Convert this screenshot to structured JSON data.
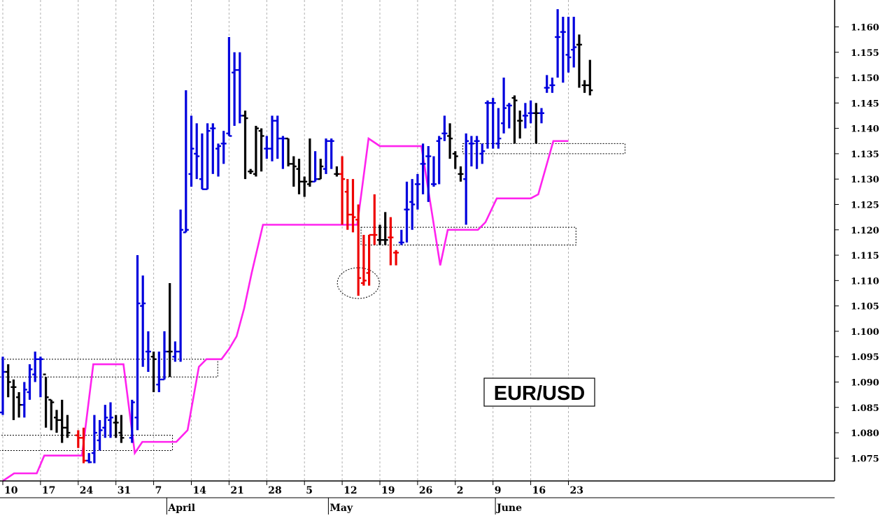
{
  "chart_data": {
    "type": "ohlc-bar",
    "title": "EUR/USD",
    "colors": {
      "up": "#0000dd",
      "down": "#000000",
      "highlight": "#ee0000",
      "line": "#ff22ee",
      "grid": "#b0b0b0"
    },
    "ylim": [
      1.0705,
      1.1653
    ],
    "y_ticks": [
      "1.075",
      "1.080",
      "1.085",
      "1.090",
      "1.095",
      "1.100",
      "1.105",
      "1.110",
      "1.115",
      "1.120",
      "1.125",
      "1.130",
      "1.135",
      "1.140",
      "1.145",
      "1.150",
      "1.155",
      "1.160"
    ],
    "x_ticks": [
      {
        "day": 0,
        "label": "10"
      },
      {
        "day": 7,
        "label": "17"
      },
      {
        "day": 14,
        "label": "24"
      },
      {
        "day": 21,
        "label": "31"
      },
      {
        "day": 28,
        "label": "7"
      },
      {
        "day": 35,
        "label": "14"
      },
      {
        "day": 42,
        "label": "21"
      },
      {
        "day": 49,
        "label": "28"
      },
      {
        "day": 56,
        "label": "5"
      },
      {
        "day": 63,
        "label": "12"
      },
      {
        "day": 70,
        "label": "19"
      },
      {
        "day": 77,
        "label": "26"
      },
      {
        "day": 84,
        "label": "2"
      },
      {
        "day": 91,
        "label": "9"
      },
      {
        "day": 98,
        "label": "16"
      },
      {
        "day": 105,
        "label": "23"
      }
    ],
    "month_labels": [
      {
        "day": 22,
        "label": "April"
      },
      {
        "day": 52,
        "label": "May"
      },
      {
        "day": 83,
        "label": "June"
      }
    ],
    "x_range_days": [
      0,
      109
    ],
    "bars": [
      {
        "d": 0,
        "o": 1.084,
        "h": 1.095,
        "l": 1.0835,
        "c": 1.092,
        "k": "up"
      },
      {
        "d": 1,
        "o": 1.092,
        "h": 1.0935,
        "l": 1.087,
        "c": 1.09,
        "k": "down"
      },
      {
        "d": 2,
        "o": 1.089,
        "h": 1.0905,
        "l": 1.0825,
        "c": 1.089,
        "k": "down"
      },
      {
        "d": 3,
        "o": 1.087,
        "h": 1.088,
        "l": 1.083,
        "c": 1.0855,
        "k": "down"
      },
      {
        "d": 4,
        "o": 1.0855,
        "h": 1.09,
        "l": 1.083,
        "c": 1.0885,
        "k": "up"
      },
      {
        "d": 5,
        "o": 1.088,
        "h": 1.0935,
        "l": 1.0865,
        "c": 1.0925,
        "k": "up"
      },
      {
        "d": 6,
        "o": 1.0915,
        "h": 1.096,
        "l": 1.09,
        "c": 1.0945,
        "k": "up"
      },
      {
        "d": 7,
        "o": 1.0945,
        "h": 1.095,
        "l": 1.087,
        "c": 1.0945,
        "k": "up"
      },
      {
        "d": 8,
        "o": 1.0915,
        "h": 1.091,
        "l": 1.081,
        "c": 1.087,
        "k": "down"
      },
      {
        "d": 9,
        "o": 1.0865,
        "h": 1.0865,
        "l": 1.0805,
        "c": 1.086,
        "k": "down"
      },
      {
        "d": 10,
        "o": 1.083,
        "h": 1.0845,
        "l": 1.08,
        "c": 1.0825,
        "k": "down"
      },
      {
        "d": 11,
        "o": 1.0825,
        "h": 1.0865,
        "l": 1.078,
        "c": 1.081,
        "k": "down"
      },
      {
        "d": 12,
        "o": 1.081,
        "h": 1.0835,
        "l": 1.079,
        "c": 1.08,
        "k": "down"
      },
      {
        "d": 14,
        "o": 1.0795,
        "h": 1.0805,
        "l": 1.077,
        "c": 1.079,
        "k": "hi"
      },
      {
        "d": 15,
        "o": 1.079,
        "h": 1.081,
        "l": 1.074,
        "c": 1.0745,
        "k": "hi"
      },
      {
        "d": 16,
        "o": 1.0745,
        "h": 1.076,
        "l": 1.074,
        "c": 1.0742,
        "k": "up"
      },
      {
        "d": 17,
        "o": 1.076,
        "h": 1.0835,
        "l": 1.074,
        "c": 1.08,
        "k": "up"
      },
      {
        "d": 18,
        "o": 1.0785,
        "h": 1.0825,
        "l": 1.0765,
        "c": 1.0805,
        "k": "up"
      },
      {
        "d": 19,
        "o": 1.081,
        "h": 1.0855,
        "l": 1.079,
        "c": 1.083,
        "k": "up"
      },
      {
        "d": 20,
        "o": 1.0825,
        "h": 1.086,
        "l": 1.079,
        "c": 1.083,
        "k": "up"
      },
      {
        "d": 21,
        "o": 1.082,
        "h": 1.0835,
        "l": 1.079,
        "c": 1.082,
        "k": "down"
      },
      {
        "d": 22,
        "o": 1.08,
        "h": 1.0835,
        "l": 1.078,
        "c": 1.079,
        "k": "down"
      },
      {
        "d": 24,
        "o": 1.079,
        "h": 1.0865,
        "l": 1.078,
        "c": 1.086,
        "k": "up"
      },
      {
        "d": 25,
        "o": 1.083,
        "h": 1.115,
        "l": 1.0805,
        "c": 1.1055,
        "k": "up"
      },
      {
        "d": 26,
        "o": 1.105,
        "h": 1.111,
        "l": 1.093,
        "c": 1.1055,
        "k": "up"
      },
      {
        "d": 27,
        "o": 1.096,
        "h": 1.1,
        "l": 1.092,
        "c": 1.096,
        "k": "up"
      },
      {
        "d": 28,
        "o": 1.095,
        "h": 1.096,
        "l": 1.088,
        "c": 1.0945,
        "k": "down"
      },
      {
        "d": 29,
        "o": 1.0895,
        "h": 1.096,
        "l": 1.088,
        "c": 1.0905,
        "k": "up"
      },
      {
        "d": 30,
        "o": 1.0905,
        "h": 1.1,
        "l": 1.0905,
        "c": 1.096,
        "k": "up"
      },
      {
        "d": 31,
        "o": 1.096,
        "h": 1.1095,
        "l": 1.091,
        "c": 1.096,
        "k": "down"
      },
      {
        "d": 32,
        "o": 1.095,
        "h": 1.098,
        "l": 1.094,
        "c": 1.096,
        "k": "up"
      },
      {
        "d": 33,
        "o": 1.096,
        "h": 1.124,
        "l": 1.094,
        "c": 1.12,
        "k": "up"
      },
      {
        "d": 34,
        "o": 1.1195,
        "h": 1.1475,
        "l": 1.1195,
        "c": 1.12,
        "k": "up"
      },
      {
        "d": 35,
        "o": 1.131,
        "h": 1.1425,
        "l": 1.1285,
        "c": 1.136,
        "k": "up"
      },
      {
        "d": 36,
        "o": 1.135,
        "h": 1.141,
        "l": 1.13,
        "c": 1.1345,
        "k": "up"
      },
      {
        "d": 37,
        "o": 1.13,
        "h": 1.139,
        "l": 1.128,
        "c": 1.128,
        "k": "up"
      },
      {
        "d": 38,
        "o": 1.128,
        "h": 1.141,
        "l": 1.128,
        "c": 1.1395,
        "k": "up"
      },
      {
        "d": 39,
        "o": 1.14,
        "h": 1.141,
        "l": 1.131,
        "c": 1.14,
        "k": "up"
      },
      {
        "d": 40,
        "o": 1.136,
        "h": 1.137,
        "l": 1.1305,
        "c": 1.1365,
        "k": "up"
      },
      {
        "d": 41,
        "o": 1.137,
        "h": 1.1395,
        "l": 1.133,
        "c": 1.137,
        "k": "up"
      },
      {
        "d": 42,
        "o": 1.139,
        "h": 1.158,
        "l": 1.1385,
        "c": 1.1385,
        "k": "up"
      },
      {
        "d": 43,
        "o": 1.151,
        "h": 1.155,
        "l": 1.1405,
        "c": 1.1515,
        "k": "up"
      },
      {
        "d": 44,
        "o": 1.1515,
        "h": 1.155,
        "l": 1.141,
        "c": 1.1425,
        "k": "up"
      },
      {
        "d": 45,
        "o": 1.1425,
        "h": 1.1435,
        "l": 1.13,
        "c": 1.142,
        "k": "down"
      },
      {
        "d": 46,
        "o": 1.1315,
        "h": 1.132,
        "l": 1.131,
        "c": 1.1315,
        "k": "down"
      },
      {
        "d": 47,
        "o": 1.131,
        "h": 1.1405,
        "l": 1.1305,
        "c": 1.14,
        "k": "down"
      },
      {
        "d": 48,
        "o": 1.1395,
        "h": 1.14,
        "l": 1.1315,
        "c": 1.1385,
        "k": "down"
      },
      {
        "d": 49,
        "o": 1.136,
        "h": 1.1385,
        "l": 1.134,
        "c": 1.136,
        "k": "up"
      },
      {
        "d": 50,
        "o": 1.136,
        "h": 1.1425,
        "l": 1.1335,
        "c": 1.1415,
        "k": "up"
      },
      {
        "d": 51,
        "o": 1.1415,
        "h": 1.1425,
        "l": 1.134,
        "c": 1.138,
        "k": "up"
      },
      {
        "d": 52,
        "o": 1.138,
        "h": 1.1385,
        "l": 1.132,
        "c": 1.138,
        "k": "up"
      },
      {
        "d": 53,
        "o": 1.138,
        "h": 1.138,
        "l": 1.1325,
        "c": 1.133,
        "k": "down"
      },
      {
        "d": 54,
        "o": 1.133,
        "h": 1.1345,
        "l": 1.1285,
        "c": 1.1325,
        "k": "down"
      },
      {
        "d": 55,
        "o": 1.132,
        "h": 1.134,
        "l": 1.127,
        "c": 1.1295,
        "k": "down"
      },
      {
        "d": 56,
        "o": 1.1295,
        "h": 1.1305,
        "l": 1.1265,
        "c": 1.1295,
        "k": "down"
      },
      {
        "d": 57,
        "o": 1.129,
        "h": 1.138,
        "l": 1.1285,
        "c": 1.1295,
        "k": "down"
      },
      {
        "d": 58,
        "o": 1.1295,
        "h": 1.1355,
        "l": 1.1295,
        "c": 1.13,
        "k": "up"
      },
      {
        "d": 59,
        "o": 1.13,
        "h": 1.134,
        "l": 1.13,
        "c": 1.1325,
        "k": "down"
      },
      {
        "d": 60,
        "o": 1.132,
        "h": 1.138,
        "l": 1.131,
        "c": 1.1375,
        "k": "up"
      },
      {
        "d": 61,
        "o": 1.1375,
        "h": 1.138,
        "l": 1.132,
        "c": 1.1375,
        "k": "up"
      },
      {
        "d": 62,
        "o": 1.131,
        "h": 1.1325,
        "l": 1.1305,
        "c": 1.131,
        "k": "down"
      },
      {
        "d": 63,
        "o": 1.131,
        "h": 1.1345,
        "l": 1.121,
        "c": 1.13,
        "k": "hi"
      },
      {
        "d": 64,
        "o": 1.1275,
        "h": 1.13,
        "l": 1.12,
        "c": 1.123,
        "k": "hi"
      },
      {
        "d": 65,
        "o": 1.123,
        "h": 1.13,
        "l": 1.1195,
        "c": 1.1225,
        "k": "hi"
      },
      {
        "d": 66,
        "o": 1.122,
        "h": 1.125,
        "l": 1.107,
        "c": 1.1105,
        "k": "hi"
      },
      {
        "d": 67,
        "o": 1.1095,
        "h": 1.119,
        "l": 1.109,
        "c": 1.11,
        "k": "hi"
      },
      {
        "d": 68,
        "o": 1.1115,
        "h": 1.119,
        "l": 1.109,
        "c": 1.119,
        "k": "hi"
      },
      {
        "d": 69,
        "o": 1.119,
        "h": 1.127,
        "l": 1.117,
        "c": 1.119,
        "k": "hi"
      },
      {
        "d": 70,
        "o": 1.118,
        "h": 1.121,
        "l": 1.117,
        "c": 1.118,
        "k": "down"
      },
      {
        "d": 71,
        "o": 1.118,
        "h": 1.1235,
        "l": 1.117,
        "c": 1.118,
        "k": "down"
      },
      {
        "d": 72,
        "o": 1.1185,
        "h": 1.1225,
        "l": 1.113,
        "c": 1.1185,
        "k": "hi"
      },
      {
        "d": 73,
        "o": 1.1155,
        "h": 1.116,
        "l": 1.113,
        "c": 1.1155,
        "k": "hi"
      },
      {
        "d": 74,
        "o": 1.1175,
        "h": 1.12,
        "l": 1.117,
        "c": 1.1175,
        "k": "up"
      },
      {
        "d": 75,
        "o": 1.124,
        "h": 1.1295,
        "l": 1.1175,
        "c": 1.124,
        "k": "up"
      },
      {
        "d": 76,
        "o": 1.1255,
        "h": 1.13,
        "l": 1.12,
        "c": 1.125,
        "k": "up"
      },
      {
        "d": 77,
        "o": 1.129,
        "h": 1.131,
        "l": 1.124,
        "c": 1.129,
        "k": "up"
      },
      {
        "d": 78,
        "o": 1.133,
        "h": 1.137,
        "l": 1.127,
        "c": 1.133,
        "k": "up"
      },
      {
        "d": 79,
        "o": 1.1345,
        "h": 1.1365,
        "l": 1.1255,
        "c": 1.1345,
        "k": "up"
      },
      {
        "d": 80,
        "o": 1.129,
        "h": 1.1345,
        "l": 1.1285,
        "c": 1.129,
        "k": "up"
      },
      {
        "d": 81,
        "o": 1.1375,
        "h": 1.1385,
        "l": 1.129,
        "c": 1.138,
        "k": "up"
      },
      {
        "d": 82,
        "o": 1.139,
        "h": 1.1425,
        "l": 1.1375,
        "c": 1.139,
        "k": "up"
      },
      {
        "d": 83,
        "o": 1.1385,
        "h": 1.141,
        "l": 1.134,
        "c": 1.138,
        "k": "down"
      },
      {
        "d": 84,
        "o": 1.135,
        "h": 1.1355,
        "l": 1.132,
        "c": 1.1345,
        "k": "down"
      },
      {
        "d": 85,
        "o": 1.131,
        "h": 1.1325,
        "l": 1.1295,
        "c": 1.131,
        "k": "down"
      },
      {
        "d": 86,
        "o": 1.13,
        "h": 1.139,
        "l": 1.121,
        "c": 1.1375,
        "k": "up"
      },
      {
        "d": 87,
        "o": 1.137,
        "h": 1.1385,
        "l": 1.1325,
        "c": 1.137,
        "k": "up"
      },
      {
        "d": 88,
        "o": 1.1375,
        "h": 1.1385,
        "l": 1.132,
        "c": 1.1375,
        "k": "up"
      },
      {
        "d": 89,
        "o": 1.135,
        "h": 1.137,
        "l": 1.133,
        "c": 1.1355,
        "k": "up"
      },
      {
        "d": 90,
        "o": 1.145,
        "h": 1.1455,
        "l": 1.136,
        "c": 1.145,
        "k": "up"
      },
      {
        "d": 91,
        "o": 1.145,
        "h": 1.146,
        "l": 1.136,
        "c": 1.145,
        "k": "up"
      },
      {
        "d": 92,
        "o": 1.137,
        "h": 1.144,
        "l": 1.136,
        "c": 1.138,
        "k": "up"
      },
      {
        "d": 93,
        "o": 1.141,
        "h": 1.15,
        "l": 1.139,
        "c": 1.144,
        "k": "up"
      },
      {
        "d": 94,
        "o": 1.1445,
        "h": 1.145,
        "l": 1.14,
        "c": 1.1445,
        "k": "up"
      },
      {
        "d": 95,
        "o": 1.146,
        "h": 1.1465,
        "l": 1.137,
        "c": 1.1455,
        "k": "down"
      },
      {
        "d": 96,
        "o": 1.1415,
        "h": 1.1435,
        "l": 1.138,
        "c": 1.1415,
        "k": "down"
      },
      {
        "d": 97,
        "o": 1.1425,
        "h": 1.145,
        "l": 1.14,
        "c": 1.1425,
        "k": "up"
      },
      {
        "d": 98,
        "o": 1.143,
        "h": 1.1455,
        "l": 1.141,
        "c": 1.143,
        "k": "up"
      },
      {
        "d": 99,
        "o": 1.143,
        "h": 1.145,
        "l": 1.137,
        "c": 1.143,
        "k": "down"
      },
      {
        "d": 100,
        "o": 1.143,
        "h": 1.144,
        "l": 1.141,
        "c": 1.143,
        "k": "up"
      },
      {
        "d": 101,
        "o": 1.148,
        "h": 1.1505,
        "l": 1.147,
        "c": 1.148,
        "k": "up"
      },
      {
        "d": 102,
        "o": 1.1485,
        "h": 1.15,
        "l": 1.147,
        "c": 1.1485,
        "k": "up"
      },
      {
        "d": 103,
        "o": 1.158,
        "h": 1.1635,
        "l": 1.15,
        "c": 1.158,
        "k": "up"
      },
      {
        "d": 104,
        "o": 1.159,
        "h": 1.162,
        "l": 1.149,
        "c": 1.159,
        "k": "up"
      },
      {
        "d": 105,
        "o": 1.1545,
        "h": 1.162,
        "l": 1.151,
        "c": 1.154,
        "k": "up"
      },
      {
        "d": 106,
        "o": 1.1555,
        "h": 1.162,
        "l": 1.152,
        "c": 1.156,
        "k": "up"
      },
      {
        "d": 107,
        "o": 1.1565,
        "h": 1.1585,
        "l": 1.148,
        "c": 1.1565,
        "k": "down"
      },
      {
        "d": 108,
        "o": 1.1485,
        "h": 1.1495,
        "l": 1.147,
        "c": 1.1485,
        "k": "down"
      },
      {
        "d": 109,
        "o": 1.1485,
        "h": 1.1535,
        "l": 1.1465,
        "c": 1.1475,
        "k": "down"
      }
    ],
    "line_series": [
      [
        0,
        1.0705
      ],
      [
        3,
        1.072
      ],
      [
        9,
        1.072
      ],
      [
        11,
        1.0755
      ],
      [
        21,
        1.0755
      ],
      [
        24,
        1.0935
      ],
      [
        32,
        1.0935
      ],
      [
        35,
        1.076
      ],
      [
        37,
        1.0782
      ],
      [
        46,
        1.0782
      ],
      [
        49,
        1.0805
      ],
      [
        52,
        1.093
      ],
      [
        54,
        1.0945
      ],
      [
        58,
        1.0945
      ],
      [
        60,
        1.0965
      ],
      [
        62,
        1.099
      ],
      [
        64,
        1.1045
      ],
      [
        66,
        1.1115
      ],
      [
        69,
        1.121
      ],
      [
        72,
        1.121
      ],
      [
        94,
        1.121
      ],
      [
        97,
        1.138
      ],
      [
        100,
        1.1365
      ],
      [
        111,
        1.1365
      ],
      [
        116,
        1.113
      ],
      [
        118,
        1.12
      ],
      [
        126,
        1.12
      ],
      [
        128,
        1.1215
      ],
      [
        131,
        1.1262
      ],
      [
        140,
        1.1262
      ],
      [
        142,
        1.127
      ],
      [
        146,
        1.1375
      ],
      [
        150,
        1.1375
      ]
    ],
    "line_series_note_x_scale": "days, same scale as bars",
    "dashed_boxes": [
      {
        "x0": -2,
        "x1": 57,
        "y0": 1.091,
        "y1": 1.0945
      },
      {
        "x0": -2,
        "x1": 45,
        "y0": 1.0765,
        "y1": 1.0795
      },
      {
        "x0": 95,
        "x1": 152,
        "y0": 1.117,
        "y1": 1.1205
      },
      {
        "x0": 122,
        "x1": 165,
        "y0": 1.135,
        "y1": 1.137
      }
    ],
    "ellipse": {
      "day": 66,
      "value": 1.1095
    }
  }
}
